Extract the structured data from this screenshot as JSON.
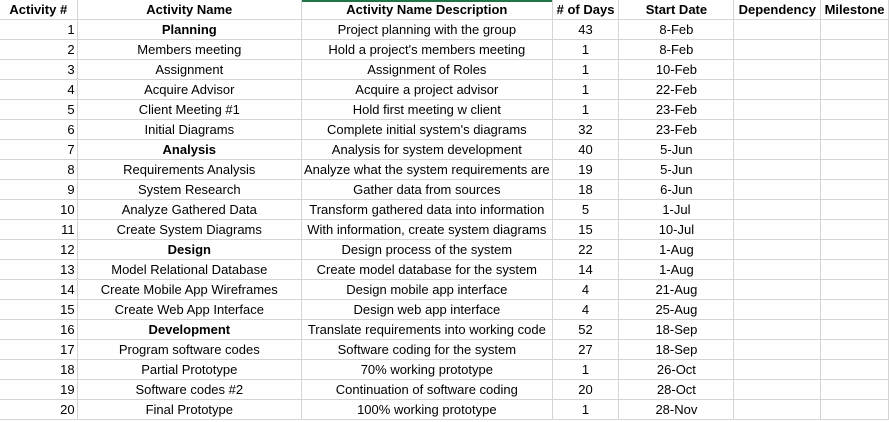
{
  "headers": {
    "activity_num": "Activity #",
    "activity_name": "Activity Name",
    "description": "Activity Name Description",
    "days": "# of Days",
    "start_date": "Start Date",
    "dependency": "Dependency",
    "milestone": "Milestone"
  },
  "rows": [
    {
      "num": "1",
      "name": "Planning",
      "bold": true,
      "desc": "Project planning with the group",
      "days": "43",
      "start": "8-Feb"
    },
    {
      "num": "2",
      "name": "Members meeting",
      "bold": false,
      "desc": "Hold a project's members meeting",
      "days": "1",
      "start": "8-Feb"
    },
    {
      "num": "3",
      "name": "Assignment",
      "bold": false,
      "desc": "Assignment of Roles",
      "days": "1",
      "start": "10-Feb"
    },
    {
      "num": "4",
      "name": "Acquire Advisor",
      "bold": false,
      "desc": "Acquire a project advisor",
      "days": "1",
      "start": "22-Feb"
    },
    {
      "num": "5",
      "name": "Client Meeting #1",
      "bold": false,
      "desc": "Hold first meeting w client",
      "days": "1",
      "start": "23-Feb"
    },
    {
      "num": "6",
      "name": "Initial Diagrams",
      "bold": false,
      "desc": "Complete initial system's diagrams",
      "days": "32",
      "start": "23-Feb"
    },
    {
      "num": "7",
      "name": "Analysis",
      "bold": true,
      "desc": "Analysis for system development",
      "days": "40",
      "start": "5-Jun"
    },
    {
      "num": "8",
      "name": "Requirements Analysis",
      "bold": false,
      "desc": "Analyze what the system requirements are",
      "days": "19",
      "start": "5-Jun"
    },
    {
      "num": "9",
      "name": "System Research",
      "bold": false,
      "desc": "Gather data from sources",
      "days": "18",
      "start": "6-Jun"
    },
    {
      "num": "10",
      "name": "Analyze Gathered Data",
      "bold": false,
      "desc": "Transform gathered data into information",
      "days": "5",
      "start": "1-Jul"
    },
    {
      "num": "11",
      "name": "Create System Diagrams",
      "bold": false,
      "desc": "With information, create system diagrams",
      "days": "15",
      "start": "10-Jul"
    },
    {
      "num": "12",
      "name": "Design",
      "bold": true,
      "desc": "Design process of the system",
      "days": "22",
      "start": "1-Aug"
    },
    {
      "num": "13",
      "name": "Model Relational Database",
      "bold": false,
      "desc": "Create model database for the system",
      "days": "14",
      "start": "1-Aug"
    },
    {
      "num": "14",
      "name": "Create Mobile App Wireframes",
      "bold": false,
      "desc": "Design mobile app interface",
      "days": "4",
      "start": "21-Aug"
    },
    {
      "num": "15",
      "name": "Create Web App Interface",
      "bold": false,
      "desc": "Design web app interface",
      "days": "4",
      "start": "25-Aug"
    },
    {
      "num": "16",
      "name": "Development",
      "bold": true,
      "desc": "Translate requirements into working code",
      "days": "52",
      "start": "18-Sep"
    },
    {
      "num": "17",
      "name": "Program software codes",
      "bold": false,
      "desc": "Software coding for the system",
      "days": "27",
      "start": "18-Sep"
    },
    {
      "num": "18",
      "name": "Partial Prototype",
      "bold": false,
      "desc": "70% working prototype",
      "days": "1",
      "start": "26-Oct"
    },
    {
      "num": "19",
      "name": "Software codes #2",
      "bold": false,
      "desc": "Continuation of software coding",
      "days": "20",
      "start": "28-Oct"
    },
    {
      "num": "20",
      "name": "Final Prototype",
      "bold": false,
      "desc": "100% working prototype",
      "days": "1",
      "start": "28-Nov"
    }
  ]
}
